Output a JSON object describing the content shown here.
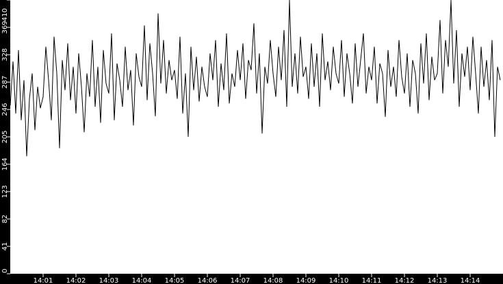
{
  "chart_data": {
    "type": "line",
    "title": "",
    "xlabel": "",
    "ylabel": "",
    "ylim": [
      0,
      410
    ],
    "yticks": [
      "0",
      "41",
      "82",
      "123",
      "164",
      "205",
      "246",
      "287",
      "328",
      "369",
      "410"
    ],
    "xlim": [
      "14:00:00",
      "14:15:00"
    ],
    "xticks": [
      "14:01",
      "14:02",
      "14:03",
      "14:04",
      "14:05",
      "14:06",
      "14:07",
      "14:08",
      "14:09",
      "14:10",
      "14:11",
      "14:12",
      "14:13",
      "14:14"
    ],
    "x_interval_seconds": 5,
    "grid": false,
    "colors": {
      "background": "#000000",
      "plot_area": "#ffffff",
      "line": "#000000",
      "axis_text": "#ffffff"
    },
    "series": [
      {
        "values": [
          252,
          318,
          240,
          335,
          230,
          290,
          176,
          262,
          300,
          215,
          280,
          248,
          265,
          340,
          290,
          230,
          355,
          300,
          188,
          320,
          275,
          345,
          260,
          310,
          240,
          330,
          280,
          212,
          300,
          265,
          350,
          250,
          310,
          226,
          335,
          285,
          270,
          360,
          230,
          315,
          290,
          250,
          340,
          275,
          305,
          222,
          330,
          295,
          280,
          372,
          260,
          345,
          300,
          236,
          390,
          285,
          350,
          270,
          320,
          290,
          305,
          262,
          355,
          240,
          300,
          205,
          340,
          275,
          325,
          258,
          310,
          280,
          265,
          330,
          290,
          350,
          250,
          315,
          275,
          360,
          255,
          300,
          280,
          335,
          290,
          345,
          262,
          320,
          305,
          375,
          270,
          330,
          210,
          310,
          285,
          350,
          300,
          265,
          340,
          290,
          365,
          250,
          410,
          280,
          330,
          270,
          355,
          295,
          310,
          262,
          345,
          280,
          330,
          250,
          360,
          290,
          318,
          275,
          340,
          300,
          285,
          350,
          265,
          330,
          300,
          255,
          345,
          280,
          320,
          360,
          270,
          310,
          290,
          340,
          255,
          315,
          300,
          235,
          335,
          280,
          310,
          265,
          350,
          295,
          270,
          330,
          250,
          320,
          300,
          240,
          345,
          285,
          360,
          260,
          325,
          290,
          300,
          380,
          270,
          350,
          310,
          410,
          285,
          365,
          250,
          330,
          295,
          340,
          275,
          355,
          300,
          240,
          340,
          280,
          320,
          260,
          350,
          205,
          310,
          290
        ]
      }
    ]
  }
}
